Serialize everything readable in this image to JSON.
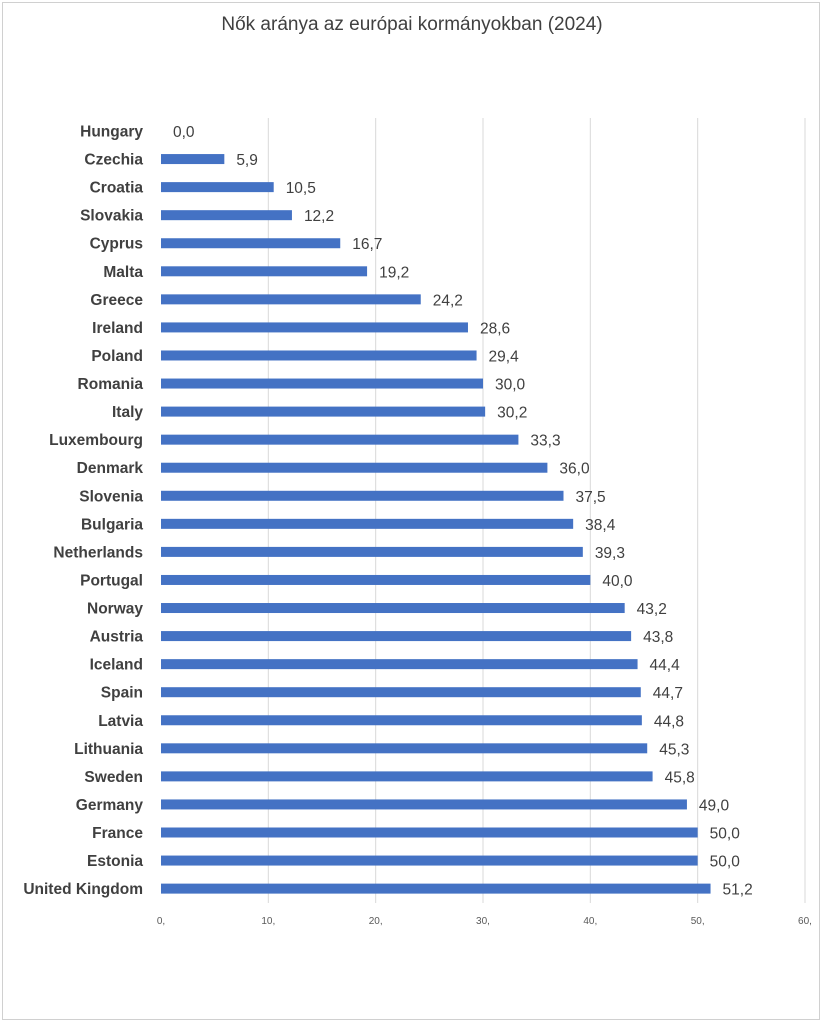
{
  "chart_data": {
    "type": "bar",
    "orientation": "horizontal",
    "title": "Nők aránya az európai kormányokban (2024)",
    "categories": [
      "Hungary",
      "Czechia",
      "Croatia",
      "Slovakia",
      "Cyprus",
      "Malta",
      "Greece",
      "Ireland",
      "Poland",
      "Romania",
      "Italy",
      "Luxembourg",
      "Denmark",
      "Slovenia",
      "Bulgaria",
      "Netherlands",
      "Portugal",
      "Norway",
      "Austria",
      "Iceland",
      "Spain",
      "Latvia",
      "Lithuania",
      "Sweden",
      "Germany",
      "France",
      "Estonia",
      "United Kingdom"
    ],
    "values": [
      0.0,
      5.9,
      10.5,
      12.2,
      16.7,
      19.2,
      24.2,
      28.6,
      29.4,
      30.0,
      30.2,
      33.3,
      36.0,
      37.5,
      38.4,
      39.3,
      40.0,
      43.2,
      43.8,
      44.4,
      44.7,
      44.8,
      45.3,
      45.8,
      49.0,
      50.0,
      50.0,
      51.2
    ],
    "value_labels": [
      "0,0",
      "5,9",
      "10,5",
      "12,2",
      "16,7",
      "19,2",
      "24,2",
      "28,6",
      "29,4",
      "30,0",
      "30,2",
      "33,3",
      "36,0",
      "37,5",
      "38,4",
      "39,3",
      "40,0",
      "43,2",
      "43,8",
      "44,4",
      "44,7",
      "44,8",
      "45,3",
      "45,8",
      "49,0",
      "50,0",
      "50,0",
      "51,2"
    ],
    "xlim": [
      0,
      60
    ],
    "x_ticks": [
      0,
      10,
      20,
      30,
      40,
      50,
      60
    ],
    "x_tick_labels": [
      "0,",
      "10,",
      "20,",
      "30,",
      "40,",
      "50,",
      "60,"
    ],
    "xlabel": "",
    "ylabel": "",
    "grid": true,
    "legend": "none",
    "bar_color": "#4472c4",
    "grid_color": "#d9d9d9"
  }
}
